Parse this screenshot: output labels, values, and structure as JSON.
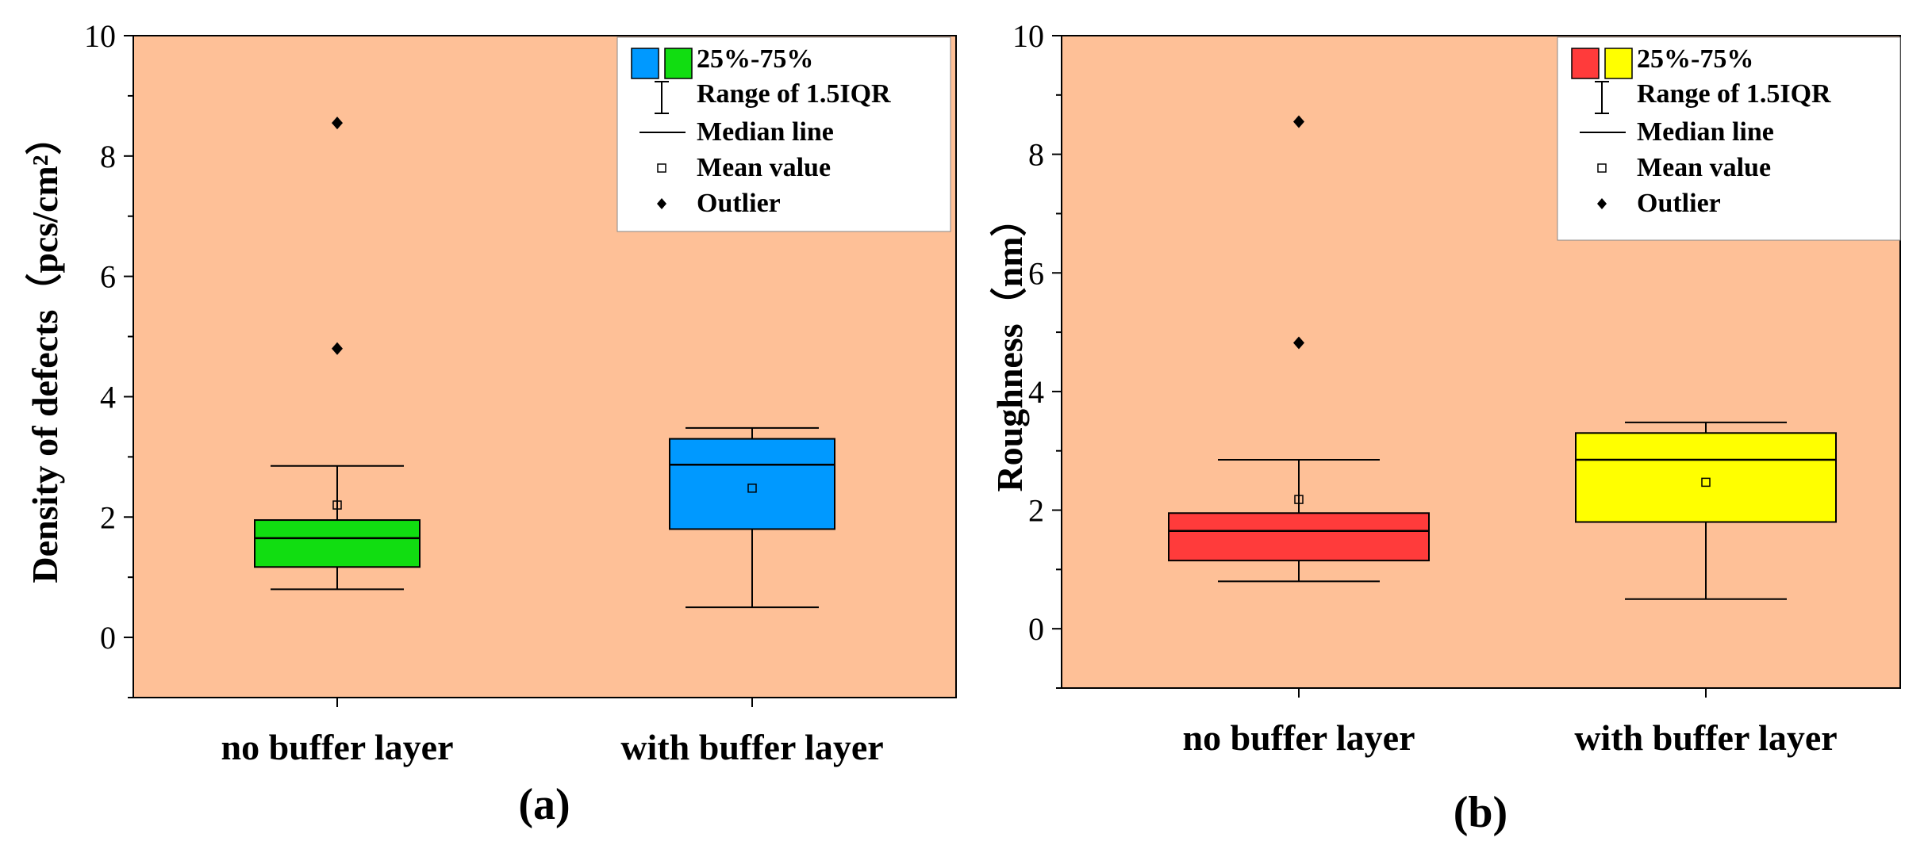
{
  "chart_data": [
    {
      "type": "box",
      "panel_label": "(a)",
      "ylabel": "Density of defects（pcs/cm²）",
      "ylim": [
        -1,
        10
      ],
      "yticks": [
        0,
        2,
        4,
        6,
        8,
        10
      ],
      "categories": [
        "no buffer layer",
        "with buffer layer"
      ],
      "boxes": [
        {
          "name": "no buffer layer",
          "whisker_low": 0.8,
          "q1": 1.17,
          "median": 1.65,
          "q3": 1.95,
          "whisker_high": 2.85,
          "mean": 2.2,
          "outliers": [
            4.8,
            8.55
          ],
          "color": "#11dd11"
        },
        {
          "name": "with buffer layer",
          "whisker_low": 0.5,
          "q1": 1.8,
          "median": 2.87,
          "q3": 3.3,
          "whisker_high": 3.48,
          "mean": 2.48,
          "outliers": [],
          "color": "#0099ff"
        }
      ],
      "legend": {
        "box_colors": [
          "#0099ff",
          "#11dd11"
        ],
        "items": [
          "25%-75%",
          "Range of 1.5IQR",
          "Median line",
          "Mean value",
          "Outlier"
        ]
      },
      "background": "#fec097"
    },
    {
      "type": "box",
      "panel_label": "(b)",
      "ylabel": "Roughness（nm）",
      "ylim": [
        -1,
        10
      ],
      "yticks": [
        0,
        2,
        4,
        6,
        8,
        10
      ],
      "categories": [
        "no buffer layer",
        "with buffer layer"
      ],
      "boxes": [
        {
          "name": "no buffer layer",
          "whisker_low": 0.8,
          "q1": 1.15,
          "median": 1.65,
          "q3": 1.95,
          "whisker_high": 2.85,
          "mean": 2.18,
          "outliers": [
            4.82,
            8.55
          ],
          "color": "#ff3b3b"
        },
        {
          "name": "with buffer layer",
          "whisker_low": 0.5,
          "q1": 1.8,
          "median": 2.85,
          "q3": 3.3,
          "whisker_high": 3.48,
          "mean": 2.47,
          "outliers": [],
          "color": "#ffff00"
        }
      ],
      "legend": {
        "box_colors": [
          "#ff3b3b",
          "#ffff00"
        ],
        "items": [
          "25%-75%",
          "Range of 1.5IQR",
          "Median line",
          "Mean value",
          "Outlier"
        ]
      },
      "background": "#fec097"
    }
  ]
}
